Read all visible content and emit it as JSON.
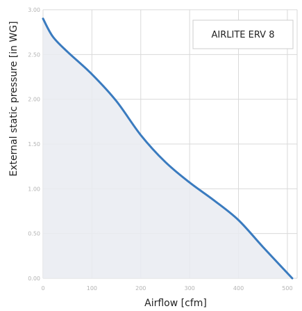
{
  "chart_data": {
    "type": "area",
    "title": "",
    "xlabel": "Airflow [cfm]",
    "ylabel": "External static pressure [in WG]",
    "xlim": [
      0,
      520
    ],
    "ylim": [
      0,
      3.0
    ],
    "x_ticks": [
      "0",
      "100",
      "200",
      "300",
      "400",
      "500"
    ],
    "y_ticks": [
      "0.00",
      "0.50",
      "1.00",
      "1.50",
      "2.00",
      "2.50",
      "3.00"
    ],
    "grid": true,
    "legend": "top-right",
    "series": [
      {
        "name": "AIRLITE ERV 8",
        "color": "#3a7bbf",
        "fill_color": "#e9ebf1",
        "x": [
          0,
          20,
          50,
          100,
          150,
          200,
          250,
          300,
          350,
          400,
          450,
          510
        ],
        "y": [
          2.9,
          2.7,
          2.53,
          2.28,
          1.98,
          1.6,
          1.3,
          1.07,
          0.87,
          0.65,
          0.35,
          0.0
        ]
      }
    ]
  }
}
